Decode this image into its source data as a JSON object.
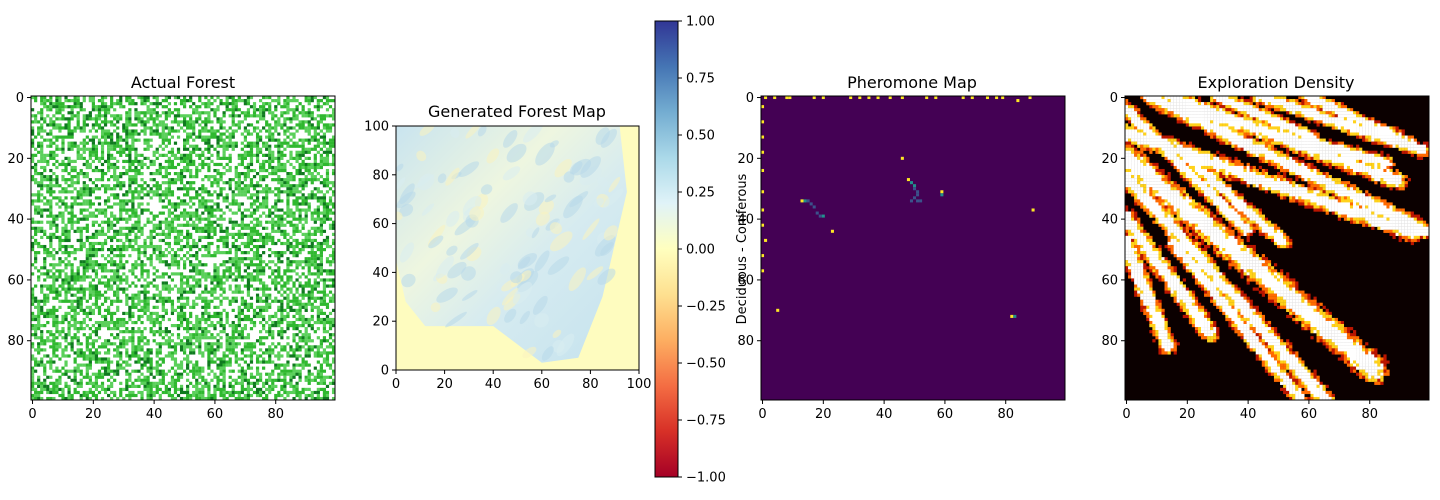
{
  "chart_data": [
    {
      "type": "heatmap",
      "title": "Actual Forest",
      "xticks": [
        0,
        20,
        40,
        60,
        80
      ],
      "yticks": [
        0,
        20,
        40,
        60,
        80
      ],
      "xlim": [
        0,
        99
      ],
      "ylim": [
        99,
        0
      ],
      "grid": false,
      "colors": {
        "background": "#ffffff",
        "light": "#5bd05b",
        "mid": "#2fb82f",
        "dark": "#0f7a1f"
      },
      "density": 0.55
    },
    {
      "type": "heatmap",
      "title": "Generated Forest Map",
      "xticks": [
        0,
        20,
        40,
        60,
        80,
        100
      ],
      "yticks": [
        0,
        20,
        40,
        60,
        80,
        100
      ],
      "xlim": [
        0,
        100
      ],
      "ylim": [
        0,
        100
      ],
      "grid": false,
      "colors": {
        "outside": "#fefcbf",
        "inside": "#d8ecf0",
        "ridge": "#b8d8ea",
        "warm": "#faf3c0"
      },
      "covered_polygon": [
        [
          0,
          100
        ],
        [
          92,
          100
        ],
        [
          95,
          73
        ],
        [
          85,
          30
        ],
        [
          75,
          5
        ],
        [
          60,
          3
        ],
        [
          40,
          18
        ],
        [
          12,
          18
        ],
        [
          4,
          28
        ],
        [
          0,
          45
        ]
      ],
      "colorbar": {
        "label": "Deciduous - Coniferous",
        "ticks": [
          "1.00",
          "0.75",
          "0.50",
          "0.25",
          "0.00",
          "−0.25",
          "−0.50",
          "−0.75",
          "−1.00"
        ],
        "range": [
          -1,
          1
        ],
        "colors": [
          "#313695",
          "#4575b4",
          "#74add1",
          "#abd9e9",
          "#e0f3f8",
          "#ffffbf",
          "#fee090",
          "#fdae61",
          "#f46d43",
          "#d73027",
          "#a50026"
        ]
      }
    },
    {
      "type": "heatmap",
      "title": "Pheromone Map",
      "xticks": [
        0,
        20,
        40,
        60,
        80
      ],
      "yticks": [
        0,
        20,
        40,
        60,
        80
      ],
      "xlim": [
        0,
        99
      ],
      "ylim": [
        99,
        0
      ],
      "grid": false,
      "colors": {
        "background": "#440154",
        "high": "#fde725",
        "mid": "#21918c",
        "low": "#3b528b"
      },
      "cells": [
        [
          1,
          0,
          "#fde725"
        ],
        [
          4,
          0,
          "#fde725"
        ],
        [
          8,
          0,
          "#fde725"
        ],
        [
          9,
          0,
          "#fde725"
        ],
        [
          17,
          0,
          "#fde725"
        ],
        [
          20,
          0,
          "#fde725"
        ],
        [
          29,
          0,
          "#fde725"
        ],
        [
          32,
          0,
          "#fde725"
        ],
        [
          35,
          0,
          "#fde725"
        ],
        [
          38,
          0,
          "#fde725"
        ],
        [
          42,
          0,
          "#fde725"
        ],
        [
          46,
          0,
          "#fde725"
        ],
        [
          54,
          0,
          "#fde725"
        ],
        [
          57,
          0,
          "#fde725"
        ],
        [
          66,
          0,
          "#fde725"
        ],
        [
          69,
          0,
          "#fde725"
        ],
        [
          74,
          0,
          "#fde725"
        ],
        [
          77,
          0,
          "#fde725"
        ],
        [
          79,
          0,
          "#fde725"
        ],
        [
          84,
          1,
          "#fde725"
        ],
        [
          88,
          0,
          "#fde725"
        ],
        [
          0,
          3,
          "#fde725"
        ],
        [
          0,
          8,
          "#fde725"
        ],
        [
          0,
          13,
          "#fde725"
        ],
        [
          0,
          18,
          "#fde725"
        ],
        [
          0,
          24,
          "#fde725"
        ],
        [
          0,
          31,
          "#fde725"
        ],
        [
          0,
          37,
          "#fde725"
        ],
        [
          0,
          42,
          "#fde725"
        ],
        [
          1,
          47,
          "#fde725"
        ],
        [
          0,
          52,
          "#fde725"
        ],
        [
          0,
          57,
          "#fde725"
        ],
        [
          13,
          34,
          "#fde725"
        ],
        [
          14,
          34,
          "#21918c"
        ],
        [
          15,
          34,
          "#3b528b"
        ],
        [
          16,
          35,
          "#3b528b"
        ],
        [
          17,
          36,
          "#3b528b"
        ],
        [
          18,
          38,
          "#3b528b"
        ],
        [
          19,
          39,
          "#3b528b"
        ],
        [
          20,
          39,
          "#21918c"
        ],
        [
          23,
          44,
          "#fde725"
        ],
        [
          46,
          20,
          "#fde725"
        ],
        [
          48,
          27,
          "#fde725"
        ],
        [
          49,
          28,
          "#21918c"
        ],
        [
          50,
          29,
          "#21918c"
        ],
        [
          50,
          30,
          "#3b528b"
        ],
        [
          51,
          31,
          "#3b528b"
        ],
        [
          51,
          32,
          "#3b528b"
        ],
        [
          50,
          33,
          "#3b528b"
        ],
        [
          49,
          34,
          "#3b528b"
        ],
        [
          51,
          34,
          "#3b528b"
        ],
        [
          52,
          34,
          "#3b528b"
        ],
        [
          59,
          31,
          "#fde725"
        ],
        [
          59,
          32,
          "#21918c"
        ],
        [
          89,
          37,
          "#fde725"
        ],
        [
          5,
          70,
          "#fde725"
        ],
        [
          82,
          72,
          "#fde725"
        ],
        [
          83,
          72,
          "#21918c"
        ]
      ]
    },
    {
      "type": "heatmap",
      "title": "Exploration Density",
      "xticks": [
        0,
        20,
        40,
        60,
        80
      ],
      "yticks": [
        0,
        20,
        40,
        60,
        80
      ],
      "xlim": [
        0,
        99
      ],
      "ylim": [
        99,
        0
      ],
      "grid": false,
      "colors": {
        "background": "#0b0000",
        "low": "#bb1500",
        "mid": "#ff6a00",
        "high": "#ffd21a",
        "max": "#ffffff"
      },
      "bands": [
        {
          "start": [
            0,
            12
          ],
          "end": [
            95,
            45
          ],
          "width": 3.2
        },
        {
          "start": [
            0,
            20
          ],
          "end": [
            82,
            90
          ],
          "width": 4.5
        },
        {
          "start": [
            8,
            0
          ],
          "end": [
            98,
            44
          ],
          "width": 3.0
        },
        {
          "start": [
            14,
            0
          ],
          "end": [
            90,
            28
          ],
          "width": 3.0
        },
        {
          "start": [
            18,
            4
          ],
          "end": [
            86,
            22
          ],
          "width": 2.5
        },
        {
          "start": [
            30,
            0
          ],
          "end": [
            62,
            14
          ],
          "width": 2.5
        },
        {
          "start": [
            44,
            0
          ],
          "end": [
            98,
            18
          ],
          "width": 2.5
        },
        {
          "start": [
            60,
            0
          ],
          "end": [
            94,
            16
          ],
          "width": 2.5
        },
        {
          "start": [
            0,
            40
          ],
          "end": [
            28,
            78
          ],
          "width": 3.0
        },
        {
          "start": [
            0,
            48
          ],
          "end": [
            14,
            82
          ],
          "width": 3.0
        },
        {
          "start": [
            0,
            26
          ],
          "end": [
            66,
            100
          ],
          "width": 3.0
        },
        {
          "start": [
            16,
            48
          ],
          "end": [
            58,
            100
          ],
          "width": 2.5
        },
        {
          "start": [
            0,
            4
          ],
          "end": [
            40,
            44
          ],
          "width": 2.5
        },
        {
          "start": [
            20,
            20
          ],
          "end": [
            52,
            48
          ],
          "width": 2.5
        }
      ]
    }
  ]
}
